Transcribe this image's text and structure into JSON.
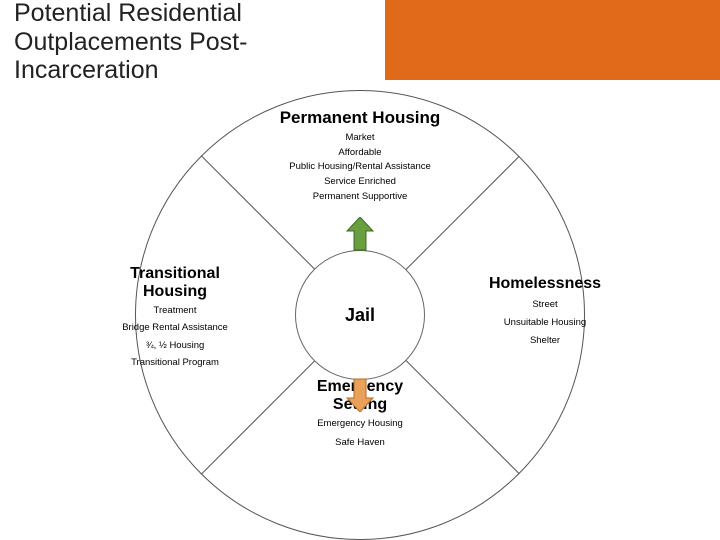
{
  "title_line1": "Potential Residential",
  "title_line2": "Outplacements Post-Incarceration",
  "colors": {
    "orange": "#e06a1a",
    "text": "#1f1f1f",
    "line": "#555555",
    "arrow_green_fill": "#6a9f3f",
    "arrow_green_stroke": "#3f6b22",
    "arrow_orange_fill": "#e8a05a",
    "arrow_orange_stroke": "#b56a22"
  },
  "center": {
    "label": "Jail"
  },
  "quadrants": {
    "top": {
      "title": "Permanent Housing",
      "items": [
        "Market",
        "Affordable",
        "Public Housing/Rental Assistance",
        "Service Enriched",
        "Permanent Supportive"
      ]
    },
    "left": {
      "title": "Transitional Housing",
      "items": [
        "Treatment",
        "Bridge Rental Assistance",
        "¾, ½ Housing",
        "Transitional Program"
      ]
    },
    "right": {
      "title": "Homelessness",
      "items": [
        "Street",
        "Unsuitable Housing",
        "Shelter"
      ]
    },
    "bottom": {
      "title": "Emergency Setting",
      "items": [
        "Emergency Housing",
        "Safe Haven"
      ]
    }
  }
}
